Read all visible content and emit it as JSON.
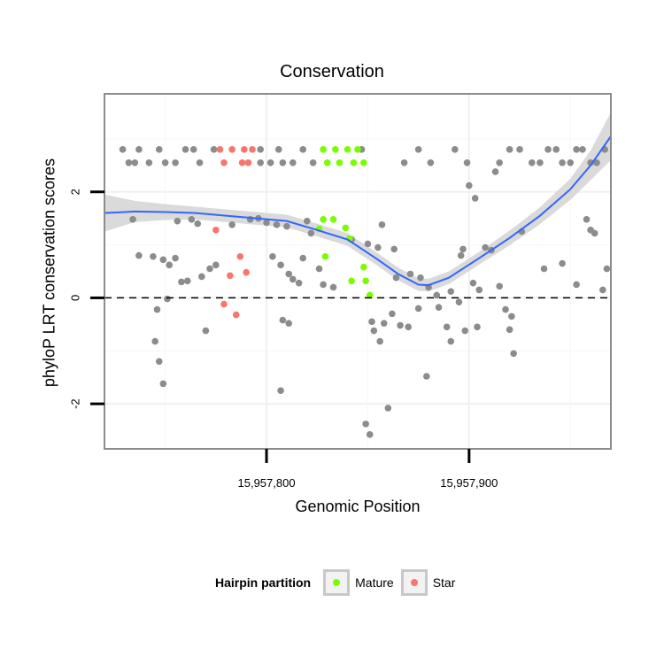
{
  "chart_data": {
    "type": "scatter",
    "title": "Conservation",
    "xlabel": "Genomic Position",
    "ylabel": "phyloP LRT conservation scores",
    "xlim": [
      15957720,
      15957970
    ],
    "ylim": [
      -2.85,
      3.85
    ],
    "x_ticks": [
      {
        "value": 15957800,
        "label": "15,957,800"
      },
      {
        "value": 15957900,
        "label": "15,957,900"
      }
    ],
    "y_ticks": [
      {
        "value": -2,
        "label": "-2"
      },
      {
        "value": 0,
        "label": "0"
      },
      {
        "value": 2,
        "label": "2"
      }
    ],
    "hline": 0,
    "grid": true,
    "legend": {
      "title": "Hairpin partition",
      "position": "bottom",
      "items": [
        {
          "label": "Mature",
          "color": "#7cfc00"
        },
        {
          "label": "Star",
          "color": "#f8766d"
        }
      ]
    },
    "colors": {
      "other": "#8c8c8c",
      "mature": "#7cfc00",
      "star": "#f8766d",
      "smooth": "#3366ff",
      "band": "#d4d4d4"
    },
    "series": [
      {
        "group": "other",
        "points": [
          [
            15957732,
            2.55
          ],
          [
            15957737,
            2.8
          ],
          [
            15957742,
            2.55
          ],
          [
            15957747,
            2.8
          ],
          [
            15957755,
            2.55
          ],
          [
            15957760,
            2.8
          ],
          [
            15957767,
            2.55
          ],
          [
            15957774,
            2.8
          ],
          [
            15957729,
            2.8
          ],
          [
            15957735,
            2.55
          ],
          [
            15957750,
            2.55
          ],
          [
            15957764,
            2.8
          ],
          [
            15957797,
            2.8
          ],
          [
            15957802,
            2.55
          ],
          [
            15957806,
            2.8
          ],
          [
            15957813,
            2.55
          ],
          [
            15957818,
            2.8
          ],
          [
            15957823,
            2.55
          ],
          [
            15957797,
            2.55
          ],
          [
            15957808,
            2.55
          ],
          [
            15957847,
            2.8
          ],
          [
            15957868,
            2.55
          ],
          [
            15957875,
            2.8
          ],
          [
            15957881,
            2.55
          ],
          [
            15957893,
            2.8
          ],
          [
            15957899,
            2.55
          ],
          [
            15957915,
            2.55
          ],
          [
            15957925,
            2.8
          ],
          [
            15957931,
            2.55
          ],
          [
            15957939,
            2.8
          ],
          [
            15957946,
            2.55
          ],
          [
            15957953,
            2.8
          ],
          [
            15957960,
            2.55
          ],
          [
            15957967,
            2.8
          ],
          [
            15957920,
            2.8
          ],
          [
            15957935,
            2.55
          ],
          [
            15957943,
            2.8
          ],
          [
            15957950,
            2.55
          ],
          [
            15957956,
            2.8
          ],
          [
            15957963,
            2.55
          ],
          [
            15957734,
            1.48
          ],
          [
            15957737,
            0.8
          ],
          [
            15957744,
            0.78
          ],
          [
            15957749,
            0.72
          ],
          [
            15957752,
            0.62
          ],
          [
            15957755,
            0.75
          ],
          [
            15957758,
            0.3
          ],
          [
            15957761,
            0.32
          ],
          [
            15957745,
            -0.82
          ],
          [
            15957747,
            -1.2
          ],
          [
            15957749,
            -1.62
          ],
          [
            15957746,
            -0.22
          ],
          [
            15957751,
            -0.02
          ],
          [
            15957756,
            1.45
          ],
          [
            15957763,
            1.48
          ],
          [
            15957766,
            1.4
          ],
          [
            15957768,
            0.4
          ],
          [
            15957772,
            0.55
          ],
          [
            15957775,
            0.62
          ],
          [
            15957770,
            -0.62
          ],
          [
            15957783,
            1.38
          ],
          [
            15957792,
            1.48
          ],
          [
            15957796,
            1.5
          ],
          [
            15957800,
            1.42
          ],
          [
            15957805,
            1.38
          ],
          [
            15957810,
            1.35
          ],
          [
            15957803,
            0.78
          ],
          [
            15957807,
            0.62
          ],
          [
            15957811,
            0.45
          ],
          [
            15957813,
            0.35
          ],
          [
            15957816,
            0.28
          ],
          [
            15957808,
            -0.42
          ],
          [
            15957811,
            -0.48
          ],
          [
            15957807,
            -1.75
          ],
          [
            15957820,
            1.45
          ],
          [
            15957822,
            1.22
          ],
          [
            15957826,
            0.55
          ],
          [
            15957828,
            0.25
          ],
          [
            15957833,
            0.2
          ],
          [
            15957818,
            0.75
          ],
          [
            15957842,
            1.1
          ],
          [
            15957850,
            1.02
          ],
          [
            15957855,
            0.95
          ],
          [
            15957857,
            1.38
          ],
          [
            15957852,
            -0.45
          ],
          [
            15957853,
            -0.62
          ],
          [
            15957856,
            -0.82
          ],
          [
            15957858,
            -0.48
          ],
          [
            15957849,
            -2.38
          ],
          [
            15957851,
            -2.58
          ],
          [
            15957860,
            -2.08
          ],
          [
            15957862,
            -0.3
          ],
          [
            15957866,
            -0.52
          ],
          [
            15957870,
            -0.55
          ],
          [
            15957875,
            -0.2
          ],
          [
            15957879,
            -1.48
          ],
          [
            15957863,
            0.92
          ],
          [
            15957871,
            0.45
          ],
          [
            15957876,
            0.38
          ],
          [
            15957880,
            0.2
          ],
          [
            15957885,
            -0.18
          ],
          [
            15957889,
            -0.55
          ],
          [
            15957891,
            -0.82
          ],
          [
            15957895,
            -0.08
          ],
          [
            15957898,
            -0.62
          ],
          [
            15957902,
            0.28
          ],
          [
            15957905,
            0.15
          ],
          [
            15957908,
            0.95
          ],
          [
            15957911,
            0.9
          ],
          [
            15957904,
            -0.55
          ],
          [
            15957915,
            0.22
          ],
          [
            15957918,
            -0.22
          ],
          [
            15957921,
            -0.35
          ],
          [
            15957920,
            -0.6
          ],
          [
            15957922,
            -1.05
          ],
          [
            15957900,
            2.12
          ],
          [
            15957903,
            1.88
          ],
          [
            15957913,
            2.38
          ],
          [
            15957926,
            1.25
          ],
          [
            15957937,
            0.55
          ],
          [
            15957946,
            0.65
          ],
          [
            15957953,
            0.25
          ],
          [
            15957958,
            1.48
          ],
          [
            15957960,
            1.28
          ],
          [
            15957962,
            1.22
          ],
          [
            15957966,
            0.15
          ],
          [
            15957968,
            0.55
          ],
          [
            15957897,
            0.92
          ],
          [
            15957864,
            0.38
          ],
          [
            15957884,
            0.05
          ],
          [
            15957891,
            0.12
          ],
          [
            15957896,
            0.8
          ]
        ]
      },
      {
        "group": "mature",
        "points": [
          [
            15957828,
            2.8
          ],
          [
            15957834,
            2.8
          ],
          [
            15957840,
            2.8
          ],
          [
            15957845,
            2.8
          ],
          [
            15957830,
            2.55
          ],
          [
            15957836,
            2.55
          ],
          [
            15957843,
            2.55
          ],
          [
            15957848,
            2.55
          ],
          [
            15957828,
            1.48
          ],
          [
            15957833,
            1.48
          ],
          [
            15957826,
            1.3
          ],
          [
            15957839,
            1.32
          ],
          [
            15957841,
            1.12
          ],
          [
            15957829,
            0.78
          ],
          [
            15957842,
            0.32
          ],
          [
            15957848,
            0.58
          ],
          [
            15957849,
            0.32
          ],
          [
            15957851,
            0.05
          ]
        ]
      },
      {
        "group": "star",
        "points": [
          [
            15957777,
            2.8
          ],
          [
            15957783,
            2.8
          ],
          [
            15957789,
            2.8
          ],
          [
            15957793,
            2.8
          ],
          [
            15957779,
            2.55
          ],
          [
            15957788,
            2.55
          ],
          [
            15957791,
            2.55
          ],
          [
            15957775,
            1.28
          ],
          [
            15957779,
            -0.12
          ],
          [
            15957782,
            0.42
          ],
          [
            15957785,
            -0.32
          ],
          [
            15957787,
            0.78
          ],
          [
            15957790,
            0.48
          ]
        ]
      }
    ],
    "smooth": {
      "x": [
        15957720,
        15957735,
        15957750,
        15957765,
        15957780,
        15957795,
        15957810,
        15957825,
        15957840,
        15957855,
        15957865,
        15957875,
        15957880,
        15957890,
        15957905,
        15957920,
        15957935,
        15957950,
        15957960,
        15957970
      ],
      "y": [
        1.6,
        1.63,
        1.62,
        1.6,
        1.55,
        1.5,
        1.45,
        1.28,
        1.1,
        0.72,
        0.45,
        0.25,
        0.24,
        0.38,
        0.75,
        1.13,
        1.55,
        2.05,
        2.5,
        3.05
      ],
      "se": [
        0.35,
        0.2,
        0.15,
        0.12,
        0.12,
        0.12,
        0.12,
        0.12,
        0.12,
        0.12,
        0.12,
        0.12,
        0.12,
        0.12,
        0.12,
        0.14,
        0.16,
        0.2,
        0.28,
        0.45
      ]
    }
  }
}
